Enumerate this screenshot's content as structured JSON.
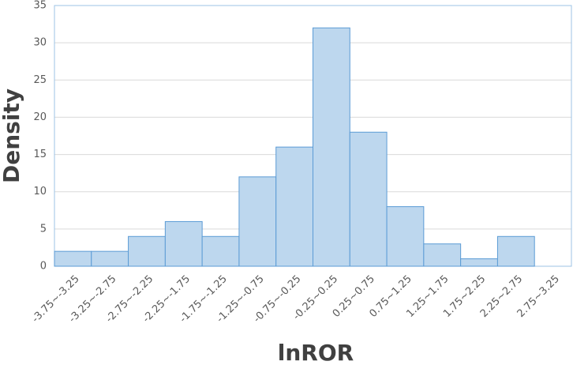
{
  "chart_data": {
    "type": "bar",
    "x_label": "lnROR",
    "y_label": "Density",
    "categories": [
      "-3.75~-3.25",
      "-3.25~-2.75",
      "-2.75~-2.25",
      "-2.25~-1.75",
      "-1.75~-1.25",
      "-1.25~-0.75",
      "-0.75~-0.25",
      "-0.25~0.25",
      "0.25~0.75",
      "0.75~1.25",
      "1.25~1.75",
      "1.75~2.25",
      "2.25~2.75",
      "2.75~3.25"
    ],
    "values": [
      2,
      2,
      4,
      6,
      4,
      12,
      16,
      32,
      18,
      8,
      3,
      1,
      4,
      0
    ],
    "color": "#bdd7ee",
    "edge_color": "#5b9bd5",
    "ylim": [
      0,
      35
    ],
    "yticks": [
      0,
      5,
      10,
      15,
      20,
      25,
      30,
      35
    ],
    "grid": true
  }
}
